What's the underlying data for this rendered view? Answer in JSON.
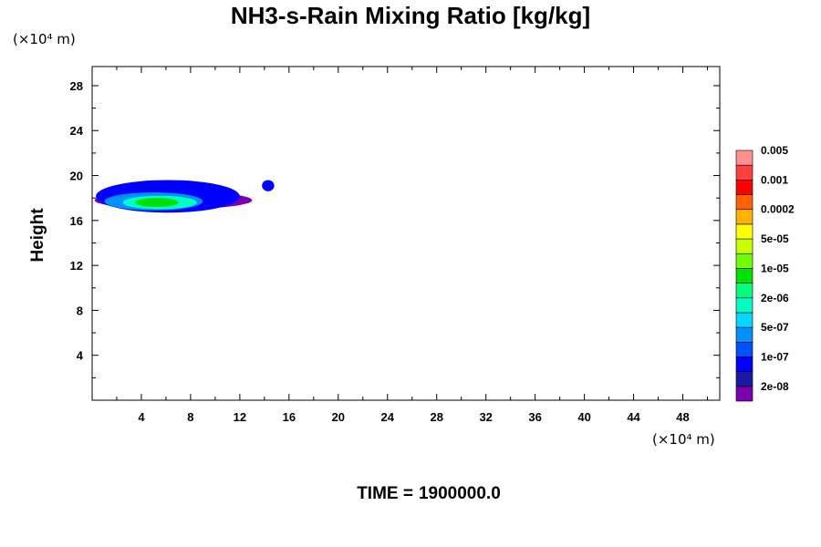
{
  "chart_data": {
    "type": "heatmap",
    "title": "NH3-s-Rain Mixing Ratio [kg/kg]",
    "xlabel": "",
    "ylabel": "Height",
    "x_unit": "(×10⁴ m)",
    "y_unit": "(×10⁴ m)",
    "xlim": [
      0,
      51
    ],
    "ylim": [
      0,
      29.7
    ],
    "x_ticks": [
      4,
      8,
      12,
      16,
      20,
      24,
      28,
      32,
      36,
      40,
      44,
      48
    ],
    "y_ticks": [
      4,
      8,
      12,
      16,
      20,
      24,
      28
    ],
    "x_tick_labels": [
      "4",
      "8",
      "12",
      "16",
      "20",
      "24",
      "28",
      "32",
      "36",
      "40",
      "44",
      "48"
    ],
    "y_tick_labels": [
      "4",
      "8",
      "12",
      "16",
      "20",
      "24",
      "28"
    ],
    "colorbar": {
      "colors": [
        "#7a00b0",
        "#1a1aa0",
        "#0000ff",
        "#0050ff",
        "#0090ff",
        "#00d8ff",
        "#00ffc0",
        "#00ff80",
        "#00e000",
        "#70ff00",
        "#c8ff00",
        "#ffff00",
        "#ffb000",
        "#ff6000",
        "#ff0000",
        "#ff4040",
        "#ff9090"
      ],
      "labels": [
        "2e-08",
        "1e-07",
        "5e-07",
        "2e-06",
        "1e-05",
        "5e-05",
        "0.0002",
        "0.001",
        "0.005"
      ]
    },
    "regions": [
      {
        "level": "2e-08",
        "color": "#7a00b0",
        "x": [
          0.2,
          13.0
        ],
        "y": [
          17.0,
          18.6
        ]
      },
      {
        "level": "1e-07",
        "color": "#0000ff",
        "x": [
          0.3,
          12.0
        ],
        "y": [
          16.7,
          19.6
        ]
      },
      {
        "level": "5e-07",
        "color": "#0090ff",
        "x": [
          1.0,
          9.0
        ],
        "y": [
          16.9,
          18.5
        ]
      },
      {
        "level": "2e-06",
        "color": "#00ffc0",
        "x": [
          2.5,
          8.5
        ],
        "y": [
          17.0,
          18.2
        ]
      },
      {
        "level": "1e-05",
        "color": "#00e000",
        "x": [
          3.5,
          7.0
        ],
        "y": [
          17.2,
          18.0
        ]
      },
      {
        "level": "1e-07",
        "color": "#0000ff",
        "x": [
          13.8,
          14.8
        ],
        "y": [
          18.6,
          19.6
        ]
      }
    ]
  },
  "footer": {
    "time_label": "TIME =",
    "time_value": "1900000.0"
  }
}
